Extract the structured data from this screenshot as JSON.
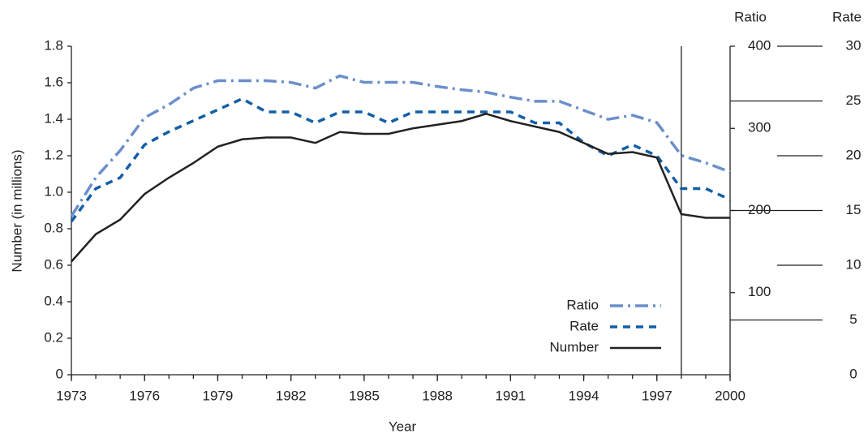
{
  "chart_data": {
    "type": "line",
    "x_label": "Year",
    "y_label": "Number (in millions)",
    "y2_label": "Ratio",
    "y3_label": "Rate",
    "x": [
      1973,
      1974,
      1975,
      1976,
      1977,
      1978,
      1979,
      1980,
      1981,
      1982,
      1983,
      1984,
      1985,
      1986,
      1987,
      1988,
      1989,
      1990,
      1991,
      1992,
      1993,
      1994,
      1995,
      1996,
      1997,
      1998,
      1999,
      2000
    ],
    "xlim": [
      1973,
      2000
    ],
    "xticks": [
      1973,
      1976,
      1979,
      1982,
      1985,
      1988,
      1991,
      1994,
      1997,
      2000
    ],
    "ylim": [
      0,
      1.8
    ],
    "yticks": [
      0,
      0.2,
      0.4,
      0.6,
      0.8,
      {
        "value": 1.0,
        "label": "1.0"
      },
      1.2,
      1.4,
      1.6,
      1.8
    ],
    "y2lim": [
      0,
      400
    ],
    "y2ticks": [
      100,
      200,
      300,
      400
    ],
    "y3lim": [
      0,
      30
    ],
    "y3ticks": [
      0,
      5,
      10,
      15,
      20,
      25,
      30
    ],
    "marker_x": 1998,
    "series": [
      {
        "name": "Ratio",
        "color": "#6b8fcb",
        "line_style": "dashdot",
        "axis": "y2",
        "values": [
          193,
          240,
          273,
          313,
          329,
          349,
          358,
          358,
          358,
          356,
          349,
          364,
          356,
          356,
          356,
          351,
          347,
          344,
          338,
          333,
          333,
          322,
          311,
          316,
          307,
          267,
          258,
          247
        ]
      },
      {
        "name": "Rate",
        "color": "#135fa6",
        "line_style": "dashed",
        "axis": "y3",
        "values": [
          14.0,
          17.0,
          18.0,
          21.0,
          22.2,
          23.2,
          24.2,
          25.2,
          24.0,
          24.0,
          23.0,
          24.0,
          24.0,
          23.0,
          24.0,
          24.0,
          24.0,
          24.0,
          24.0,
          23.0,
          23.0,
          21.2,
          20.0,
          21.0,
          20.0,
          17.0,
          17.0,
          16.0
        ]
      },
      {
        "name": "Number",
        "color": "#222222",
        "line_style": "solid",
        "axis": "y",
        "values": [
          0.62,
          0.77,
          0.85,
          0.99,
          1.08,
          1.16,
          1.25,
          1.29,
          1.3,
          1.3,
          1.27,
          1.33,
          1.32,
          1.32,
          1.35,
          1.37,
          1.39,
          1.43,
          1.39,
          1.36,
          1.33,
          1.27,
          1.21,
          1.22,
          1.19,
          0.88,
          0.86,
          0.86
        ]
      }
    ]
  }
}
